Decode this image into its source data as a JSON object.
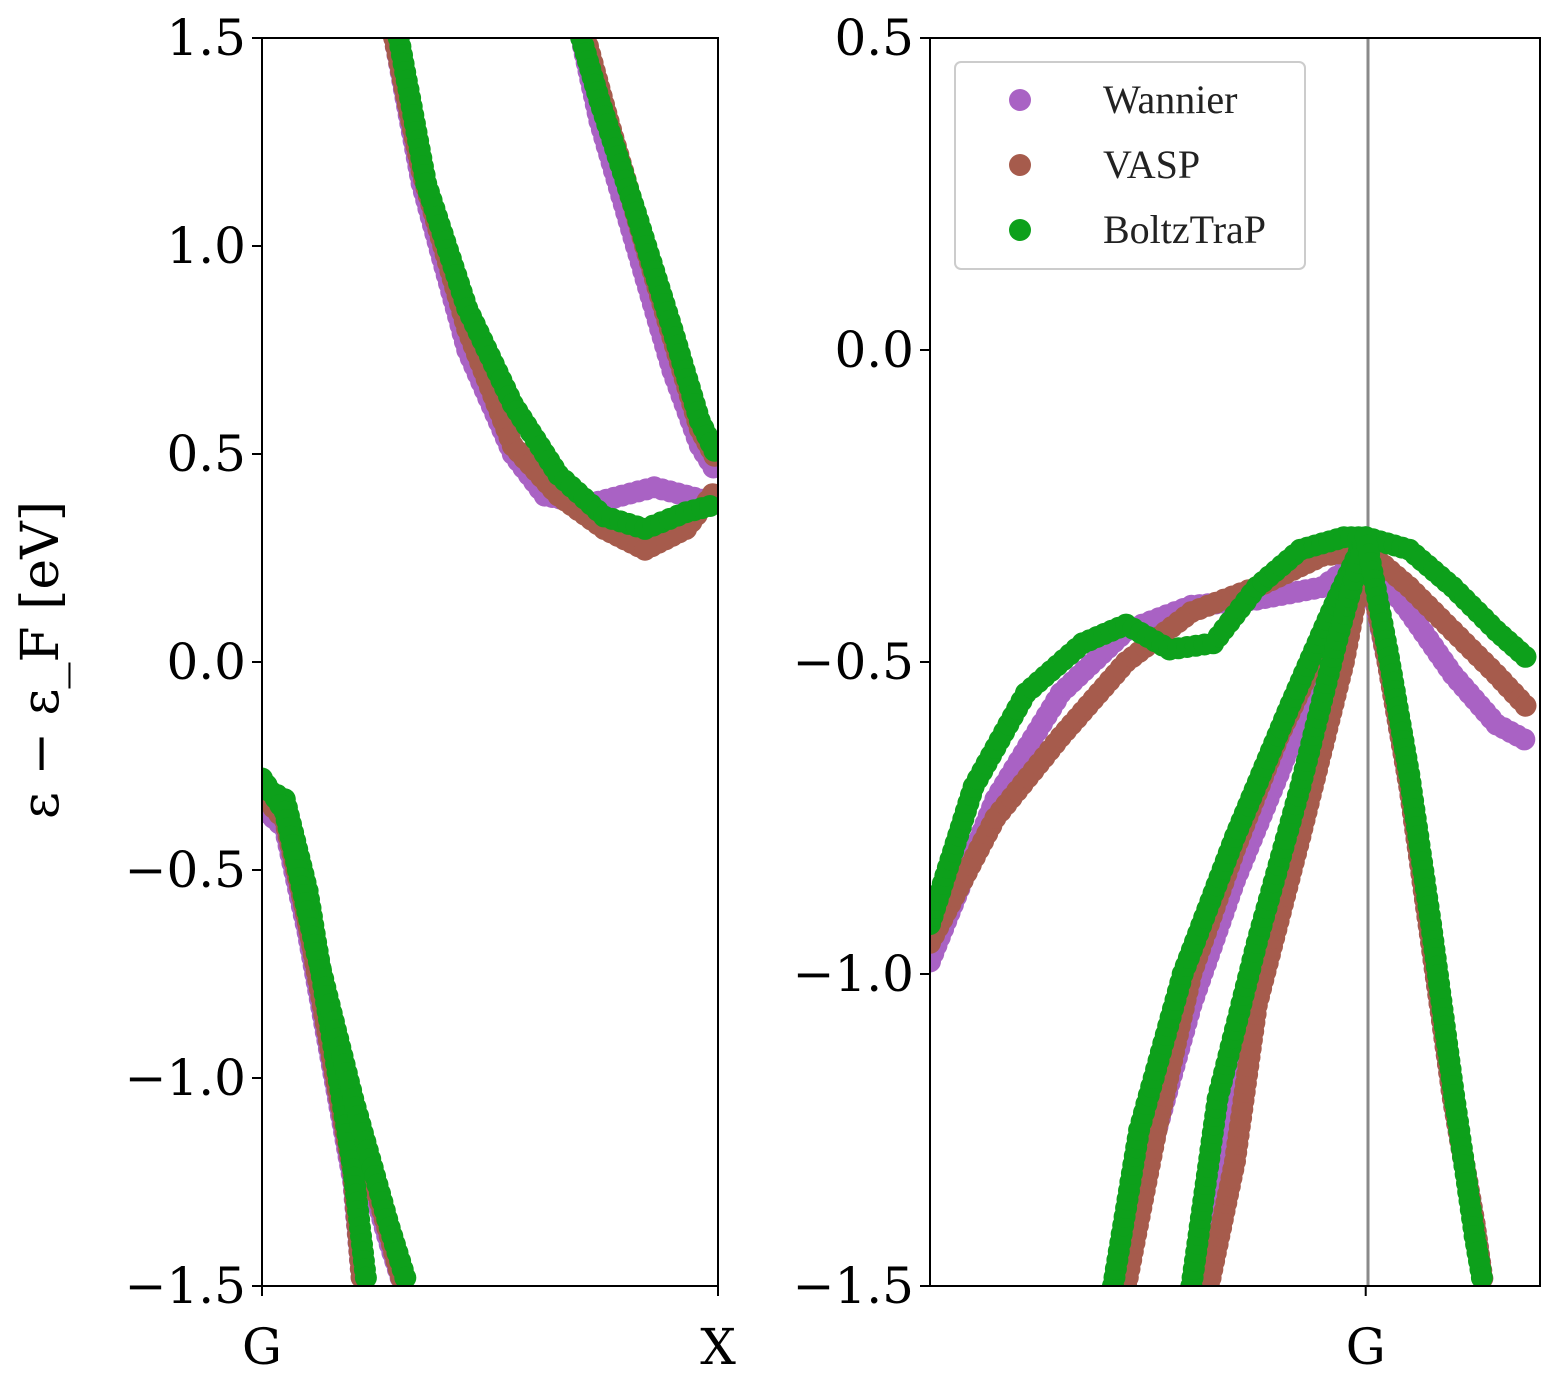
{
  "ylabel": "ε − ε_F [eV]",
  "legend": [
    {
      "label": "Wannier",
      "color": "#a962c4"
    },
    {
      "label": "VASP",
      "color": "#a65b4c"
    },
    {
      "label": "BoltzTraP",
      "color": "#0da01b"
    }
  ],
  "chart_data": [
    {
      "type": "scatter",
      "panel": "left",
      "xlabel": "",
      "ylim": [
        -1.5,
        1.5
      ],
      "xlim": [
        0,
        1
      ],
      "yticks": [
        -1.5,
        -1.0,
        -0.5,
        0.0,
        0.5,
        1.0,
        1.5
      ],
      "ytick_labels": [
        "−1.5",
        "−1.0",
        "−0.5",
        "0.0",
        "0.5",
        "1.0",
        "1.5"
      ],
      "xtick_values": [
        0,
        1
      ],
      "xtick_labels": [
        "G",
        "X"
      ],
      "series": [
        {
          "name": "Wannier",
          "bands": [
            [
              [
                0.0,
                -0.35
              ],
              [
                0.05,
                -0.4
              ],
              [
                0.1,
                -0.65
              ],
              [
                0.15,
                -0.95
              ],
              [
                0.2,
                -1.25
              ],
              [
                0.22,
                -1.5
              ]
            ],
            [
              [
                0.0,
                -0.32
              ],
              [
                0.05,
                -0.38
              ],
              [
                0.12,
                -0.75
              ],
              [
                0.2,
                -1.1
              ],
              [
                0.28,
                -1.4
              ],
              [
                0.31,
                -1.5
              ]
            ],
            [
              [
                0.29,
                1.5
              ],
              [
                0.35,
                1.15
              ],
              [
                0.45,
                0.75
              ],
              [
                0.55,
                0.5
              ],
              [
                0.62,
                0.4
              ],
              [
                0.72,
                0.38
              ],
              [
                0.86,
                0.42
              ],
              [
                1.0,
                0.38
              ]
            ],
            [
              [
                0.7,
                1.5
              ],
              [
                0.74,
                1.3
              ],
              [
                0.82,
                1.0
              ],
              [
                0.9,
                0.7
              ],
              [
                0.96,
                0.52
              ],
              [
                1.0,
                0.45
              ]
            ]
          ]
        },
        {
          "name": "VASP",
          "bands": [
            [
              [
                0.0,
                -0.32
              ],
              [
                0.05,
                -0.38
              ],
              [
                0.1,
                -0.62
              ],
              [
                0.15,
                -0.93
              ],
              [
                0.2,
                -1.23
              ],
              [
                0.22,
                -1.5
              ]
            ],
            [
              [
                0.0,
                -0.3
              ],
              [
                0.05,
                -0.36
              ],
              [
                0.12,
                -0.73
              ],
              [
                0.2,
                -1.08
              ],
              [
                0.28,
                -1.38
              ],
              [
                0.31,
                -1.5
              ]
            ],
            [
              [
                0.29,
                1.5
              ],
              [
                0.35,
                1.18
              ],
              [
                0.45,
                0.8
              ],
              [
                0.55,
                0.52
              ],
              [
                0.65,
                0.4
              ],
              [
                0.75,
                0.32
              ],
              [
                0.84,
                0.27
              ],
              [
                0.93,
                0.32
              ],
              [
                1.0,
                0.42
              ]
            ],
            [
              [
                0.71,
                1.5
              ],
              [
                0.76,
                1.3
              ],
              [
                0.84,
                1.0
              ],
              [
                0.9,
                0.78
              ],
              [
                0.96,
                0.56
              ],
              [
                1.0,
                0.48
              ]
            ]
          ]
        },
        {
          "name": "BoltzTraP",
          "bands": [
            [
              [
                0.0,
                -0.3
              ],
              [
                0.05,
                -0.33
              ],
              [
                0.1,
                -0.55
              ],
              [
                0.15,
                -0.88
              ],
              [
                0.2,
                -1.22
              ],
              [
                0.23,
                -1.5
              ]
            ],
            [
              [
                0.0,
                -0.28
              ],
              [
                0.05,
                -0.36
              ],
              [
                0.12,
                -0.7
              ],
              [
                0.2,
                -1.05
              ],
              [
                0.28,
                -1.36
              ],
              [
                0.32,
                -1.5
              ]
            ],
            [
              [
                0.3,
                1.5
              ],
              [
                0.36,
                1.15
              ],
              [
                0.45,
                0.85
              ],
              [
                0.55,
                0.62
              ],
              [
                0.65,
                0.45
              ],
              [
                0.75,
                0.35
              ],
              [
                0.84,
                0.32
              ],
              [
                0.93,
                0.36
              ],
              [
                1.0,
                0.38
              ]
            ],
            [
              [
                0.7,
                1.5
              ],
              [
                0.74,
                1.35
              ],
              [
                0.82,
                1.08
              ],
              [
                0.9,
                0.8
              ],
              [
                0.96,
                0.58
              ],
              [
                1.0,
                0.49
              ]
            ]
          ]
        }
      ]
    },
    {
      "type": "scatter",
      "panel": "right",
      "xlabel": "",
      "ylim": [
        -1.5,
        0.5
      ],
      "xlim": [
        -1.0,
        0.4
      ],
      "yticks": [
        -1.5,
        -1.0,
        -0.5,
        0.0,
        0.5
      ],
      "ytick_labels": [
        "−1.5",
        "−1.0",
        "−0.5",
        "0.0",
        "0.5"
      ],
      "xtick_values": [
        0
      ],
      "xtick_labels": [
        "G"
      ],
      "legend_position": "top-left",
      "series": [
        {
          "name": "Wannier",
          "bands": [
            [
              [
                -1.0,
                -0.98
              ],
              [
                -0.85,
                -0.72
              ],
              [
                -0.7,
                -0.55
              ],
              [
                -0.55,
                -0.45
              ],
              [
                -0.4,
                -0.41
              ],
              [
                -0.25,
                -0.4
              ],
              [
                -0.1,
                -0.38
              ],
              [
                0.0,
                -0.33
              ],
              [
                0.1,
                -0.42
              ],
              [
                0.2,
                -0.52
              ],
              [
                0.3,
                -0.6
              ],
              [
                0.38,
                -0.63
              ]
            ],
            [
              [
                -0.55,
                -1.5
              ],
              [
                -0.5,
                -1.3
              ],
              [
                -0.4,
                -1.05
              ],
              [
                -0.3,
                -0.85
              ],
              [
                -0.2,
                -0.68
              ],
              [
                -0.1,
                -0.5
              ],
              [
                0.0,
                -0.33
              ]
            ],
            [
              [
                -0.38,
                -1.5
              ],
              [
                -0.32,
                -1.25
              ],
              [
                -0.25,
                -1.0
              ],
              [
                -0.15,
                -0.7
              ],
              [
                -0.05,
                -0.45
              ],
              [
                0.0,
                -0.33
              ]
            ],
            [
              [
                0.0,
                -0.33
              ],
              [
                0.05,
                -0.5
              ],
              [
                0.1,
                -0.7
              ],
              [
                0.15,
                -0.95
              ],
              [
                0.2,
                -1.2
              ],
              [
                0.25,
                -1.4
              ],
              [
                0.27,
                -1.5
              ]
            ]
          ]
        },
        {
          "name": "VASP",
          "bands": [
            [
              [
                -1.0,
                -0.95
              ],
              [
                -0.85,
                -0.75
              ],
              [
                -0.7,
                -0.62
              ],
              [
                -0.55,
                -0.5
              ],
              [
                -0.4,
                -0.42
              ],
              [
                -0.25,
                -0.38
              ],
              [
                -0.1,
                -0.33
              ],
              [
                0.0,
                -0.32
              ],
              [
                0.1,
                -0.38
              ],
              [
                0.2,
                -0.45
              ],
              [
                0.3,
                -0.52
              ],
              [
                0.38,
                -0.58
              ]
            ],
            [
              [
                -0.55,
                -1.5
              ],
              [
                -0.48,
                -1.25
              ],
              [
                -0.4,
                -1.0
              ],
              [
                -0.3,
                -0.8
              ],
              [
                -0.2,
                -0.62
              ],
              [
                -0.1,
                -0.47
              ],
              [
                0.0,
                -0.32
              ]
            ],
            [
              [
                -0.36,
                -1.5
              ],
              [
                -0.3,
                -1.3
              ],
              [
                -0.25,
                -1.05
              ],
              [
                -0.15,
                -0.78
              ],
              [
                -0.05,
                -0.5
              ],
              [
                0.0,
                -0.32
              ]
            ],
            [
              [
                0.0,
                -0.32
              ],
              [
                0.05,
                -0.5
              ],
              [
                0.1,
                -0.7
              ],
              [
                0.15,
                -0.95
              ],
              [
                0.2,
                -1.2
              ],
              [
                0.25,
                -1.4
              ],
              [
                0.27,
                -1.5
              ]
            ]
          ]
        },
        {
          "name": "BoltzTraP",
          "bands": [
            [
              [
                -1.0,
                -0.92
              ],
              [
                -0.9,
                -0.7
              ],
              [
                -0.78,
                -0.55
              ],
              [
                -0.65,
                -0.47
              ],
              [
                -0.55,
                -0.44
              ],
              [
                -0.45,
                -0.48
              ],
              [
                -0.35,
                -0.47
              ],
              [
                -0.25,
                -0.38
              ],
              [
                -0.15,
                -0.32
              ],
              [
                -0.05,
                -0.3
              ],
              [
                0.0,
                -0.3
              ],
              [
                0.1,
                -0.32
              ],
              [
                0.2,
                -0.38
              ],
              [
                0.3,
                -0.45
              ],
              [
                0.38,
                -0.5
              ]
            ],
            [
              [
                -0.58,
                -1.5
              ],
              [
                -0.52,
                -1.25
              ],
              [
                -0.42,
                -1.0
              ],
              [
                -0.3,
                -0.78
              ],
              [
                -0.18,
                -0.58
              ],
              [
                -0.08,
                -0.42
              ],
              [
                0.0,
                -0.3
              ]
            ],
            [
              [
                -0.4,
                -1.5
              ],
              [
                -0.34,
                -1.2
              ],
              [
                -0.25,
                -0.95
              ],
              [
                -0.15,
                -0.7
              ],
              [
                -0.06,
                -0.45
              ],
              [
                0.0,
                -0.3
              ]
            ],
            [
              [
                0.0,
                -0.3
              ],
              [
                0.05,
                -0.48
              ],
              [
                0.1,
                -0.68
              ],
              [
                0.15,
                -0.92
              ],
              [
                0.2,
                -1.18
              ],
              [
                0.25,
                -1.42
              ],
              [
                0.27,
                -1.5
              ]
            ]
          ]
        }
      ]
    }
  ]
}
